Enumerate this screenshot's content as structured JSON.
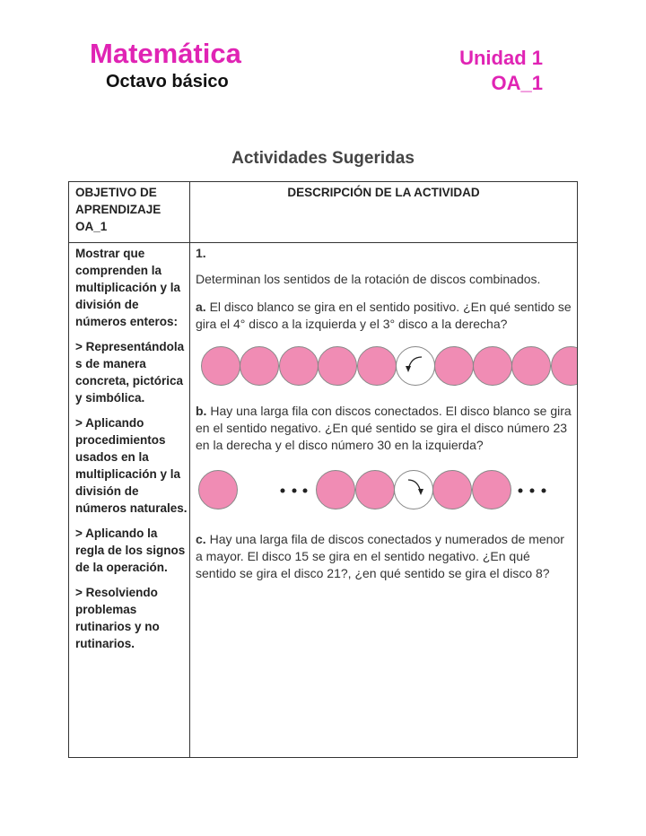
{
  "header": {
    "title": "Matemática",
    "subtitle": "Octavo básico",
    "unit": "Unidad 1",
    "oa": "OA_1"
  },
  "section_title": "Actividades Sugeridas",
  "colors": {
    "accent": "#e024b4",
    "disc": "#f08cb4"
  },
  "table": {
    "col1_header": "OBJETIVO DE APRENDIZAJE OA_1",
    "col2_header": "DESCRIPCIÓN DE LA ACTIVIDAD",
    "objectives": [
      "Mostrar que comprenden la multiplicación y la división de números enteros:",
      "> Representándola s de manera concreta, pictórica y simbólica.",
      "> Aplicando procedimientos usados en la multiplicación y la división de números naturales.",
      "> Aplicando la regla de los signos de la operación.",
      "> Resolviendo problemas rutinarios y no rutinarios."
    ],
    "activity_number": "1.",
    "intro": "Determinan los sentidos de la rotación de discos combinados.",
    "items": [
      {
        "label": "a.",
        "text": " El disco blanco se gira en el sentido positivo. ¿En qué sentido se gira el 4° disco a la izquierda y el 3° disco a la derecha?"
      },
      {
        "label": "b.",
        "text": " Hay una larga fila con discos conectados. El disco blanco se gira en el sentido negativo. ¿En qué sentido se gira el disco número 23 en la derecha y el disco número 30 en la izquierda?"
      },
      {
        "label": "c.",
        "text": " Hay una larga fila de discos conectados y numerados de menor a mayor. El disco 15 se gira en el sentido negativo. ¿En qué sentido se gira el disco 21?, ¿en qué sentido se gira el disco 8?"
      }
    ]
  }
}
